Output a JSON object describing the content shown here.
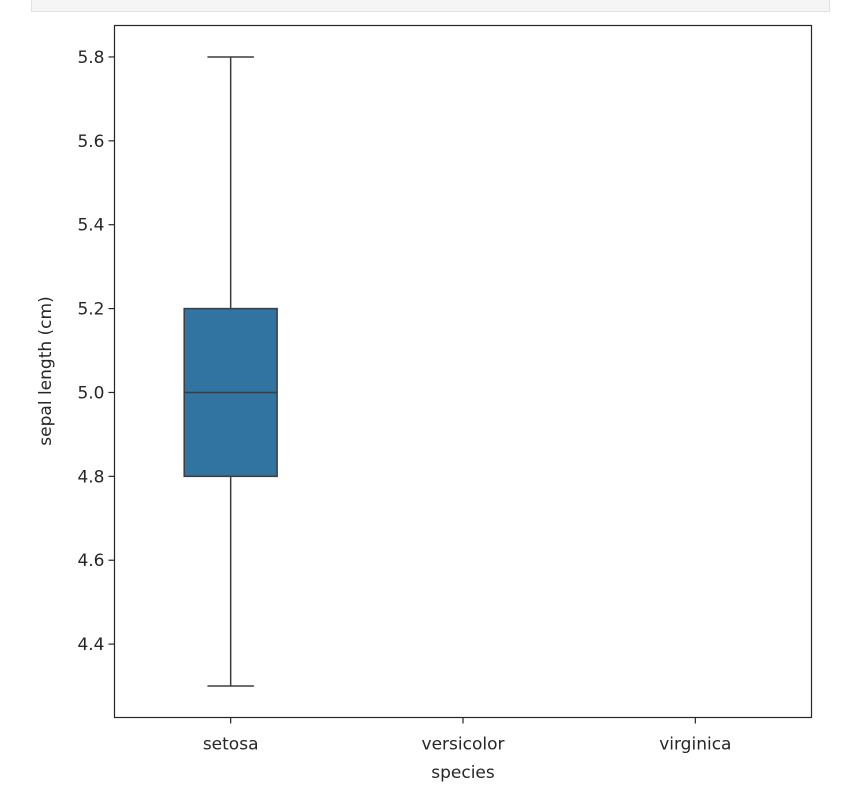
{
  "chart_data": {
    "type": "box",
    "categories": [
      "setosa",
      "versicolor",
      "virginica"
    ],
    "boxes": [
      {
        "category": "setosa",
        "whisker_low": 4.3,
        "q1": 4.8,
        "median": 5.0,
        "q3": 5.2,
        "whisker_high": 5.8
      }
    ],
    "xlabel": "species",
    "ylabel": "sepal length (cm)",
    "yticks": [
      "4.4",
      "4.6",
      "4.8",
      "5.0",
      "5.2",
      "5.4",
      "5.6",
      "5.8"
    ],
    "ylim": [
      4.225,
      5.875
    ],
    "grid": false,
    "box_color": "#3274a1",
    "line_color": "#3d3d3d"
  }
}
